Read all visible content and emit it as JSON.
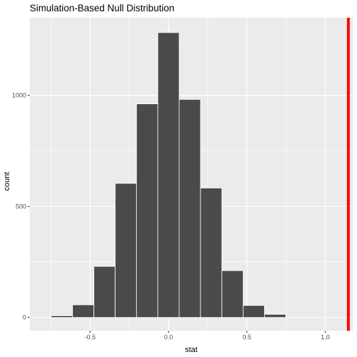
{
  "chart_data": {
    "type": "bar",
    "title": "Simulation-Based Null Distribution",
    "xlabel": "stat",
    "ylabel": "count",
    "xlim": [
      -0.885,
      1.175
    ],
    "ylim": [
      -60,
      1350
    ],
    "grid": true,
    "bin_width": 0.136,
    "bins": [
      {
        "center": -0.68,
        "count": 8
      },
      {
        "center": -0.544,
        "count": 57
      },
      {
        "center": -0.408,
        "count": 230
      },
      {
        "center": -0.272,
        "count": 604
      },
      {
        "center": -0.136,
        "count": 962
      },
      {
        "center": 0.0,
        "count": 1283
      },
      {
        "center": 0.136,
        "count": 982
      },
      {
        "center": 0.272,
        "count": 583
      },
      {
        "center": 0.408,
        "count": 211
      },
      {
        "center": 0.544,
        "count": 54
      },
      {
        "center": 0.68,
        "count": 14
      }
    ],
    "observed_stat": 1.147,
    "x_ticks": [
      {
        "value": -0.5,
        "label": "-0.5"
      },
      {
        "value": 0.0,
        "label": "0.0"
      },
      {
        "value": 0.5,
        "label": "0.5"
      },
      {
        "value": 1.0,
        "label": "1.0"
      }
    ],
    "y_ticks": [
      {
        "value": 0,
        "label": "0"
      },
      {
        "value": 500,
        "label": "500"
      },
      {
        "value": 1000,
        "label": "1000"
      }
    ],
    "colors": {
      "panel": "#ebebeb",
      "grid_major": "#ffffff",
      "bar_fill": "#4a4a4a",
      "bar_edge": "#ffffff",
      "observed_line": "#ff0000"
    }
  }
}
